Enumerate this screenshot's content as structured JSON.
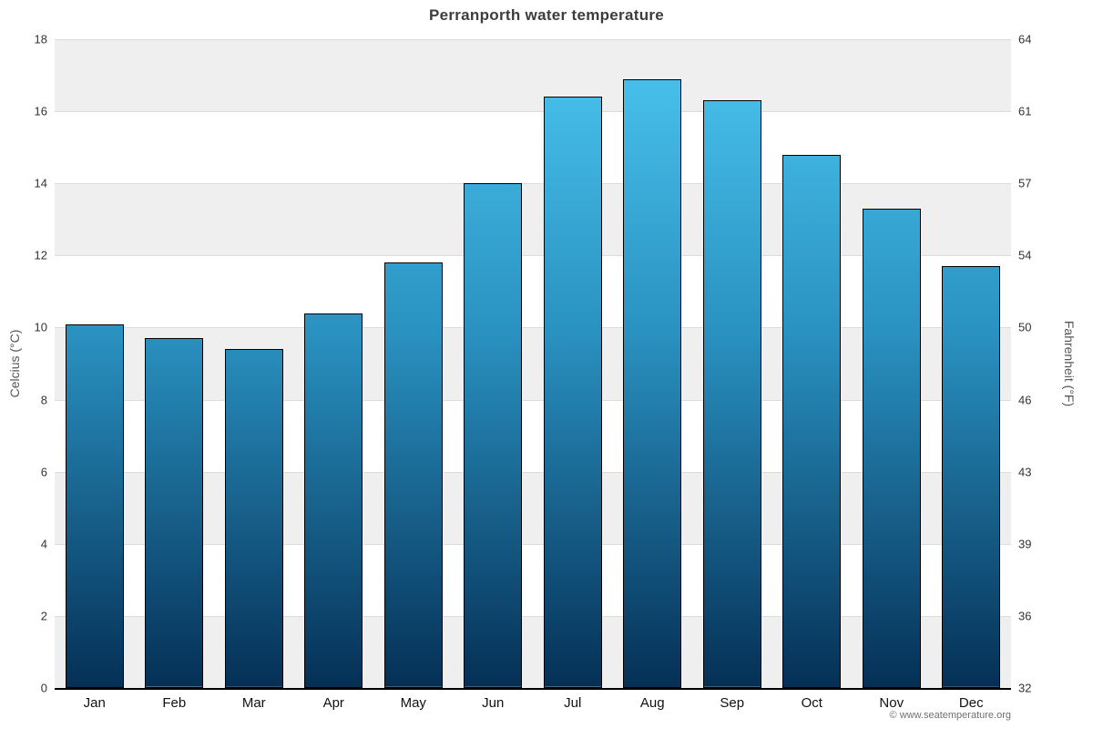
{
  "title": "Perranporth water temperature",
  "footer": {
    "copyright": "© www.seatemperature.org"
  },
  "chart_data": {
    "type": "bar",
    "title": "Perranporth water temperature",
    "categories": [
      "Jan",
      "Feb",
      "Mar",
      "Apr",
      "May",
      "Jun",
      "Jul",
      "Aug",
      "Sep",
      "Oct",
      "Nov",
      "Dec"
    ],
    "values": [
      10.1,
      9.7,
      9.4,
      10.4,
      11.8,
      14.0,
      16.4,
      16.9,
      16.3,
      14.8,
      13.3,
      11.7
    ],
    "series_name": "Water temperature (°C)",
    "xlabel": "",
    "ylabel_left": "Celcius (°C)",
    "ylabel_right": "Fahrenheit (°F)",
    "ylim": [
      0,
      18
    ],
    "ytick_step": 2,
    "yticks_celsius": [
      0,
      2,
      4,
      6,
      8,
      10,
      12,
      14,
      16,
      18
    ],
    "yticks_fahrenheit": [
      "32",
      "36",
      "39",
      "43",
      "46",
      "50",
      "54",
      "57",
      "61",
      "64"
    ],
    "grid": "horizontal gridlines with alternating shaded bands",
    "legend": "none",
    "colors": {
      "bar_top": "#4cc6f1",
      "bar_mid": "#2a92c1",
      "bar_bottom": "#053056",
      "bar_border": "#000000",
      "band_gray": "#efefef",
      "band_white": "#ffffff",
      "gridline": "#dcdcdc",
      "axis_line": "#000000",
      "title_color": "#3d3d3d",
      "tick_color": "#333333"
    }
  }
}
